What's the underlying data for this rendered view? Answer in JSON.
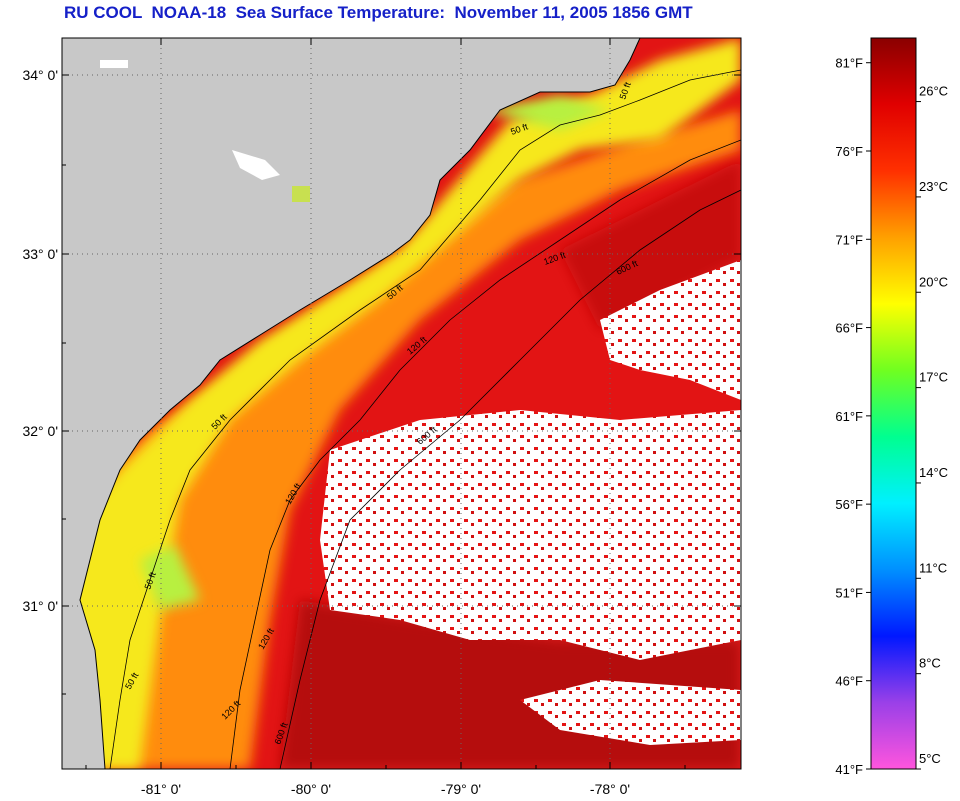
{
  "title": "RU COOL  NOAA-18  Sea Surface Temperature:  November 11, 2005 1856 GMT",
  "map": {
    "lat_labels": [
      "34° 0'",
      "33° 0'",
      "32° 0'",
      "31° 0'"
    ],
    "lon_labels": [
      "-81° 0'",
      "-80° 0'",
      "-79° 0'",
      "-78° 0'"
    ],
    "contour_labels": [
      "50 ft",
      "50 ft",
      "50 ft",
      "50 ft",
      "50 ft",
      "50 ft",
      "50 ft",
      "120 ft",
      "120 ft",
      "120 ft",
      "120 ft",
      "120 ft",
      "600 ft",
      "600 ft",
      "600 ft"
    ],
    "colors": {
      "land": "#c8c8c8",
      "cloud": "#ffffff",
      "nearshore": "#f4f020",
      "shelf": "#ff9a10",
      "offshore": "#e41010",
      "gulf_stream": "#b40808"
    }
  },
  "colorbar": {
    "fahrenheit_labels": [
      "81°F",
      "76°F",
      "71°F",
      "66°F",
      "61°F",
      "56°F",
      "51°F",
      "46°F",
      "41°F"
    ],
    "celsius_labels": [
      "26°C",
      "23°C",
      "20°C",
      "17°C",
      "14°C",
      "11°C",
      "8°C",
      "5°C"
    ],
    "range_celsius": [
      5,
      28
    ],
    "gradient_colors": [
      "#ff55dd",
      "#9a40e8",
      "#0018ff",
      "#0090ff",
      "#00f0ff",
      "#00ff90",
      "#70ff20",
      "#ffff00",
      "#ffa000",
      "#ff3000",
      "#e00000",
      "#8a0000"
    ]
  }
}
